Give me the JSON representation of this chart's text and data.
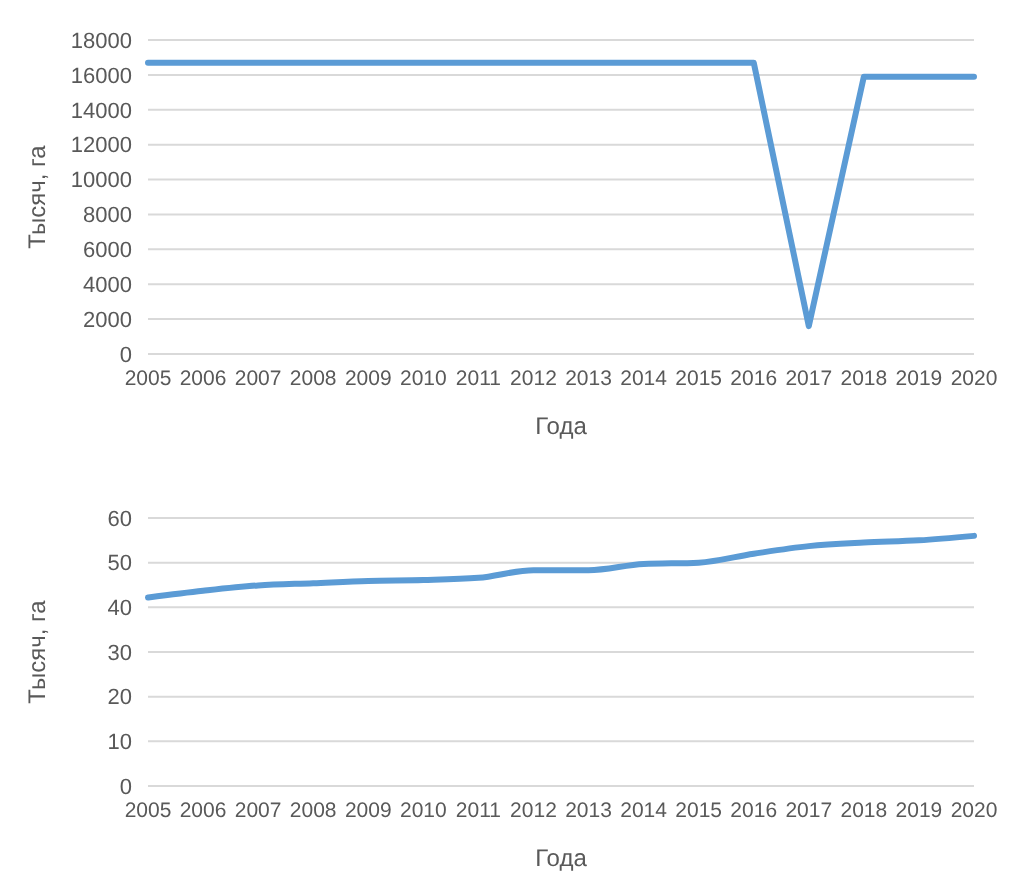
{
  "chart_data": [
    {
      "type": "line",
      "xlabel": "Года",
      "ylabel": "Тысяч, га",
      "categories": [
        "2005",
        "2006",
        "2007",
        "2008",
        "2009",
        "2010",
        "2011",
        "2012",
        "2013",
        "2014",
        "2015",
        "2016",
        "2017",
        "2018",
        "2019",
        "2020"
      ],
      "series": [
        {
          "color": "#5b9bd5",
          "values": [
            16700,
            16700,
            16700,
            16700,
            16700,
            16700,
            16700,
            16700,
            16700,
            16700,
            16700,
            16700,
            1600,
            15900,
            15900,
            15900
          ]
        }
      ],
      "ylim": [
        0,
        18000
      ],
      "yticks": [
        0,
        2000,
        4000,
        6000,
        8000,
        10000,
        12000,
        14000,
        16000,
        18000
      ],
      "grid": "y",
      "legend": false,
      "marker": "none"
    },
    {
      "type": "line",
      "xlabel": "Года",
      "ylabel": "Тысяч, га",
      "categories": [
        "2005",
        "2006",
        "2007",
        "2008",
        "2009",
        "2010",
        "2011",
        "2012",
        "2013",
        "2014",
        "2015",
        "2016",
        "2017",
        "2018",
        "2019",
        "2020"
      ],
      "series": [
        {
          "color": "#5b9bd5",
          "values": [
            42.2,
            43.7,
            44.9,
            45.4,
            45.9,
            46.1,
            46.6,
            48.3,
            48.3,
            49.7,
            50.0,
            52.0,
            53.7,
            54.5,
            55.0,
            56.0
          ]
        }
      ],
      "ylim": [
        0,
        60
      ],
      "yticks": [
        0,
        10,
        20,
        30,
        40,
        50,
        60
      ],
      "grid": "y",
      "legend": false,
      "marker": "none"
    }
  ]
}
